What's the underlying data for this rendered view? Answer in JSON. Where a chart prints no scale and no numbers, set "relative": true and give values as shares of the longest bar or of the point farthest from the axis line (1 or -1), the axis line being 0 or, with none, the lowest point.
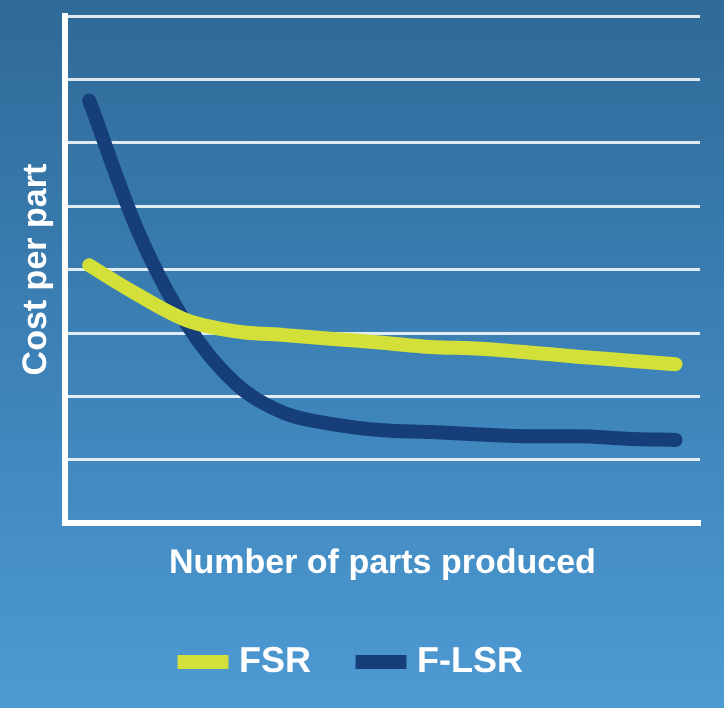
{
  "chart_data": {
    "type": "line",
    "relative": true,
    "xlabel": "Number of parts produced",
    "ylabel": "Cost per part",
    "categories": [
      null,
      null,
      null,
      null,
      null,
      null,
      null,
      null,
      null,
      null,
      null,
      null,
      null
    ],
    "series": [
      {
        "name": "FSR",
        "color": "#d4e03a",
        "values": [
          0.61,
          0.54,
          0.48,
          0.454,
          0.445,
          0.436,
          0.427,
          0.417,
          0.413,
          0.404,
          0.394,
          0.385,
          0.376
        ]
      },
      {
        "name": "F-LSR",
        "color": "#163e78",
        "values": [
          1.0,
          0.69,
          0.47,
          0.33,
          0.26,
          0.234,
          0.22,
          0.216,
          0.21,
          0.206,
          0.206,
          0.2,
          0.197
        ]
      }
    ],
    "grid": "y",
    "legend": "bottom",
    "marker": "none",
    "line_style": "solid"
  }
}
